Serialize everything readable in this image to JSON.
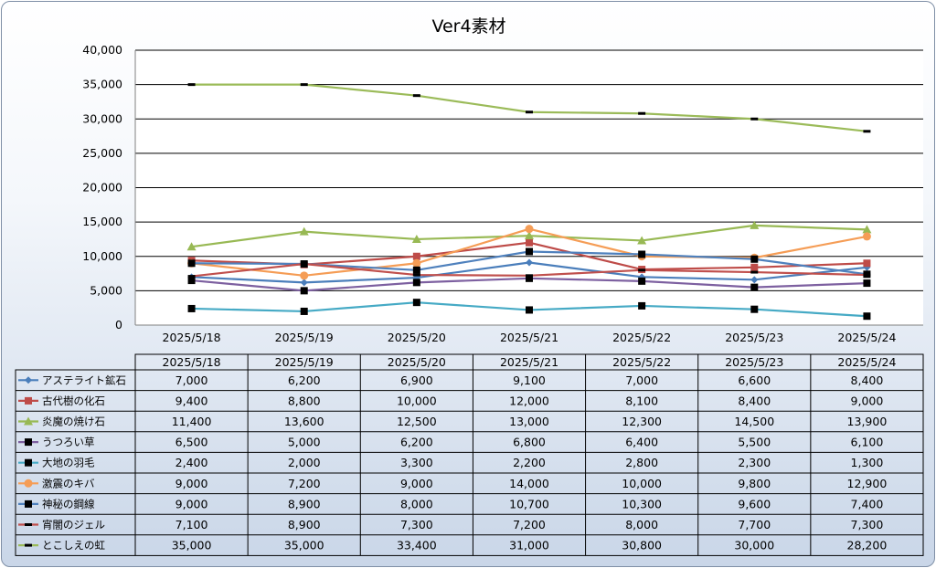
{
  "chart_data": {
    "type": "line",
    "title": "Ver4素材",
    "xlabel": "",
    "ylabel": "",
    "ylim": [
      0,
      40000
    ],
    "yticks": [
      "0",
      "5,000",
      "10,000",
      "15,000",
      "20,000",
      "25,000",
      "30,000",
      "35,000",
      "40,000"
    ],
    "categories": [
      "2025/5/18",
      "2025/5/19",
      "2025/5/20",
      "2025/5/21",
      "2025/5/22",
      "2025/5/23",
      "2025/5/24"
    ],
    "grid": true,
    "legend": "data-table-below",
    "series": [
      {
        "name": "アステライト鉱石",
        "color": "#4a7ebb",
        "marker": "diamond",
        "values": [
          7000,
          6200,
          6900,
          9100,
          7000,
          6600,
          8400
        ],
        "labels": [
          "7,000",
          "6,200",
          "6,900",
          "9,100",
          "7,000",
          "6,600",
          "8,400"
        ]
      },
      {
        "name": "古代樹の化石",
        "color": "#be4b48",
        "marker": "square-red",
        "values": [
          9400,
          8800,
          10000,
          12000,
          8100,
          8400,
          9000
        ],
        "labels": [
          "9,400",
          "8,800",
          "10,000",
          "12,000",
          "8,100",
          "8,400",
          "9,000"
        ]
      },
      {
        "name": "炎魔の焼け石",
        "color": "#98b954",
        "marker": "triangle",
        "values": [
          11400,
          13600,
          12500,
          13000,
          12300,
          14500,
          13900
        ],
        "labels": [
          "11,400",
          "13,600",
          "12,500",
          "13,000",
          "12,300",
          "14,500",
          "13,900"
        ]
      },
      {
        "name": "うつろい草",
        "color": "#7d60a0",
        "marker": "square-black",
        "values": [
          6500,
          5000,
          6200,
          6800,
          6400,
          5500,
          6100
        ],
        "labels": [
          "6,500",
          "5,000",
          "6,200",
          "6,800",
          "6,400",
          "5,500",
          "6,100"
        ]
      },
      {
        "name": "大地の羽毛",
        "color": "#46aac5",
        "marker": "square-black",
        "values": [
          2400,
          2000,
          3300,
          2200,
          2800,
          2300,
          1300
        ],
        "labels": [
          "2,400",
          "2,000",
          "3,300",
          "2,200",
          "2,800",
          "2,300",
          "1,300"
        ]
      },
      {
        "name": "激震のキバ",
        "color": "#f59d56",
        "marker": "circle",
        "values": [
          9000,
          7200,
          9000,
          14000,
          10000,
          9800,
          12900
        ],
        "labels": [
          "9,000",
          "7,200",
          "9,000",
          "14,000",
          "10,000",
          "9,800",
          "12,900"
        ]
      },
      {
        "name": "神秘の鋼線",
        "color": "#4f81bd",
        "marker": "square-black",
        "values": [
          9000,
          8900,
          8000,
          10700,
          10300,
          9600,
          7400
        ],
        "labels": [
          "9,000",
          "8,900",
          "8,000",
          "10,700",
          "10,300",
          "9,600",
          "7,400"
        ]
      },
      {
        "name": "宵闇のジェル",
        "color": "#c0504d",
        "marker": "dash",
        "values": [
          7100,
          8900,
          7300,
          7200,
          8000,
          7700,
          7300
        ],
        "labels": [
          "7,100",
          "8,900",
          "7,300",
          "7,200",
          "8,000",
          "7,700",
          "7,300"
        ]
      },
      {
        "name": "とこしえの虹",
        "color": "#9bbb59",
        "marker": "dash",
        "values": [
          35000,
          35000,
          33400,
          31000,
          30800,
          30000,
          28200
        ],
        "labels": [
          "35,000",
          "35,000",
          "33,400",
          "31,000",
          "30,800",
          "30,000",
          "28,200"
        ]
      }
    ]
  }
}
